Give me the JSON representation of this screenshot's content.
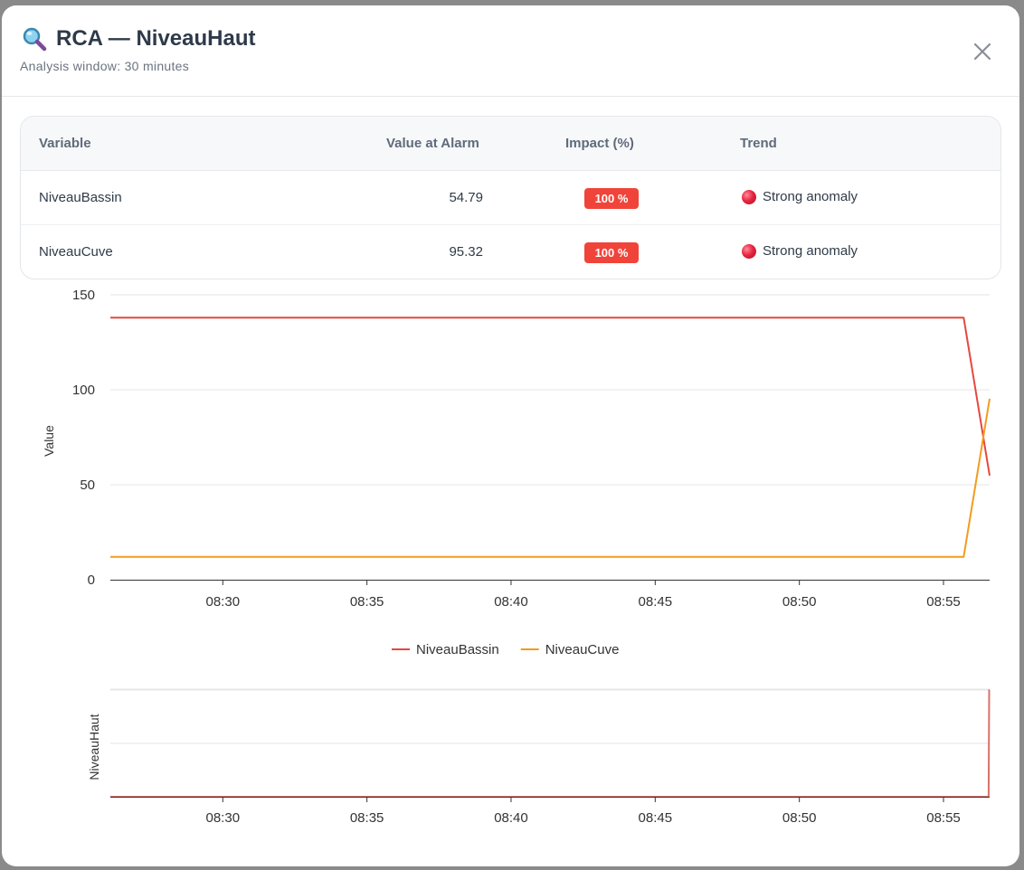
{
  "modal": {
    "title": "RCA — NiveauHaut",
    "subtitle": "Analysis window: 30 minutes",
    "close_icon": "close-icon",
    "title_icon": "magnifier-icon"
  },
  "table": {
    "headers": [
      "Variable",
      "Value at Alarm",
      "Impact (%)",
      "Trend"
    ],
    "rows": [
      {
        "variable": "NiveauBassin",
        "value": "54.79",
        "impact": "100 %",
        "trend": "Strong anomaly"
      },
      {
        "variable": "NiveauCuve",
        "value": "95.32",
        "impact": "100 %",
        "trend": "Strong anomaly"
      }
    ],
    "impact_color": "#f0443a"
  },
  "chart_data": [
    {
      "type": "line",
      "ylabel": "Value",
      "xlabel": "",
      "ylim": [
        0,
        150
      ],
      "yticks": [
        0,
        50,
        100,
        150
      ],
      "xlim": [
        "08:26:06",
        "08:56:36"
      ],
      "xticks": [
        "08:30",
        "08:35",
        "08:40",
        "08:45",
        "08:50",
        "08:55"
      ],
      "grid": true,
      "legend": "bottom",
      "series": [
        {
          "name": "NiveauBassin",
          "color": "#e5483f",
          "x": [
            "08:26:06",
            "08:55:42",
            "08:56:36"
          ],
          "y": [
            138,
            138,
            54.79
          ]
        },
        {
          "name": "NiveauCuve",
          "color": "#f39c1f",
          "x": [
            "08:26:06",
            "08:55:42",
            "08:56:36"
          ],
          "y": [
            12,
            12,
            95.32
          ]
        }
      ]
    },
    {
      "type": "line",
      "ylabel": "NiveauHaut",
      "xlabel": "",
      "ylim": [
        0,
        1
      ],
      "xlim": [
        "08:26:06",
        "08:56:36"
      ],
      "xticks": [
        "08:30",
        "08:35",
        "08:40",
        "08:45",
        "08:50",
        "08:55"
      ],
      "grid": true,
      "series": [
        {
          "color": "#d9716a",
          "x": [
            "08:26:06",
            "08:56:34",
            "08:56:35",
            "08:56:36"
          ],
          "y": [
            0,
            0,
            1,
            1
          ]
        }
      ]
    }
  ]
}
